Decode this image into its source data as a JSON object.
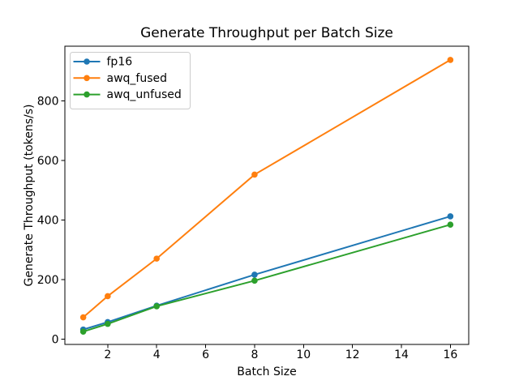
{
  "chart_data": {
    "type": "line",
    "title": "Generate Throughput per Batch Size",
    "xlabel": "Batch Size",
    "ylabel": "Generate Throughput (tokens/s)",
    "x": [
      1,
      2,
      4,
      8,
      16
    ],
    "series": [
      {
        "name": "fp16",
        "color": "#1f77b4",
        "values": [
          32,
          57,
          112,
          216,
          412
        ]
      },
      {
        "name": "awq_fused",
        "color": "#ff7f0e",
        "values": [
          73,
          144,
          270,
          552,
          937
        ]
      },
      {
        "name": "awq_unfused",
        "color": "#2ca02c",
        "values": [
          25,
          51,
          110,
          196,
          384
        ]
      }
    ],
    "xticks": [
      2,
      4,
      6,
      8,
      10,
      12,
      14,
      16
    ],
    "yticks": [
      0,
      200,
      400,
      600,
      800
    ],
    "xlim": [
      0.25,
      16.75
    ],
    "ylim": [
      -18,
      983
    ],
    "grid": false,
    "legend_position": "upper-left",
    "marker": "o",
    "line_color_axis": "#000000"
  }
}
